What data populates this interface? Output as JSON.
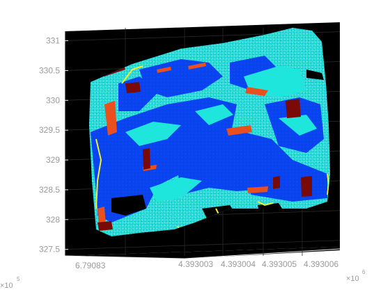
{
  "chart_data": {
    "type": "scatter",
    "title": "",
    "xlabel": "",
    "ylabel": "",
    "zlabel": "",
    "background": "#000000",
    "grid": true,
    "z_axis": {
      "ticks": [
        327.5,
        328,
        328.5,
        329,
        329.5,
        330,
        330.5,
        331
      ],
      "tick_labels": [
        "327.5",
        "328",
        "328.5",
        "329",
        "329.5",
        "330",
        "330.5",
        "331"
      ],
      "range": [
        327.45,
        331.1
      ]
    },
    "x_axis": {
      "tick_labels": [
        "6.79083"
      ],
      "exponent_base": "×10",
      "exponent": "5"
    },
    "y_axis": {
      "tick_labels": [
        "4.393003",
        "4.393004",
        "4.393005",
        "4.393006"
      ],
      "exponent_base": "×10",
      "exponent": "6"
    },
    "point_classes": [
      {
        "color": "#0a44f0",
        "role": "dominant"
      },
      {
        "color": "#1ee6dc",
        "role": "dominant"
      },
      {
        "color": "#e8501e",
        "role": "streaks"
      },
      {
        "color": "#7a0a08",
        "role": "patches"
      },
      {
        "color": "#f2f22a",
        "role": "edges"
      }
    ]
  }
}
